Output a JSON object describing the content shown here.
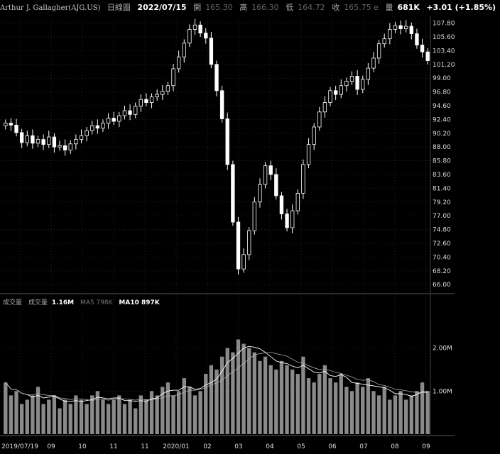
{
  "header": {
    "name": "Arthur J. Gallagher(AJG.US)",
    "period": "日線圖",
    "date": "2022/07/15",
    "open_label": "開",
    "open": "165.30",
    "high_label": "高",
    "high": "166.30",
    "low_label": "低",
    "low": "164.72",
    "close_label": "收",
    "close": "165.75 e",
    "vol_label": "量",
    "vol": "681K",
    "change": "+3.01 (+1.85%)"
  },
  "volume_legend": {
    "label": "成交量",
    "vol_label": "成交量",
    "vol_value": "1.16M",
    "ma5": "MA5 798K",
    "ma10": "MA10 897K"
  },
  "colors": {
    "background": "#000000",
    "grid": "#3a3a3a",
    "candle": "#ffffff",
    "volume_bar": "#8a8a8a",
    "ma_line": "#ffffff"
  },
  "chart_data": [
    {
      "type": "candlestick",
      "title": "",
      "y_ticks": [
        "107.80",
        "105.60",
        "103.40",
        "101.20",
        "99.00",
        "96.80",
        "94.60",
        "92.40",
        "90.20",
        "88.00",
        "85.80",
        "83.60",
        "81.40",
        "79.20",
        "77.00",
        "74.80",
        "72.60",
        "70.40",
        "68.20",
        "66.00"
      ],
      "ylim": [
        65,
        109
      ],
      "x_ticks": [
        "2019/07/19",
        "09",
        "10",
        "11",
        "11",
        "2020/01",
        "02",
        "03",
        "04",
        "05",
        "06",
        "07",
        "08",
        "09"
      ],
      "grid": true,
      "series": [
        {
          "values": [
            91.8,
            91.5,
            90.3,
            88.7,
            89.8,
            88.6,
            89.2,
            88.4,
            89.6,
            88.0,
            88.2,
            87.5,
            88.5,
            89.2,
            89.8,
            90.6,
            91.4,
            91.0,
            91.8,
            92.6,
            92.1,
            93.0,
            93.8,
            93.2,
            94.5,
            95.6,
            95.1,
            96.0,
            96.4,
            96.9,
            97.8,
            100.5,
            102.4,
            104.6,
            106.8,
            107.5,
            106.2,
            105.4,
            101.2,
            97.0,
            92.5,
            85.2,
            76.0,
            68.5,
            70.8,
            74.6,
            79.2,
            82.0,
            85.0,
            83.6,
            80.2,
            77.3,
            75.1,
            77.8,
            80.6,
            85.2,
            88.4,
            91.2,
            93.6,
            95.1,
            97.0,
            96.4,
            97.8,
            98.5,
            99.3,
            97.2,
            98.8,
            100.6,
            102.2,
            104.5,
            105.3,
            106.8,
            107.4,
            106.9,
            107.3,
            106.1,
            104.3,
            103.2,
            101.8
          ]
        }
      ]
    },
    {
      "type": "bar",
      "title": "",
      "y_ticks": [
        "2.00M",
        "1.00M"
      ],
      "ylim": [
        0,
        2.9
      ],
      "series": [
        {
          "values": [
            1.2,
            0.9,
            1.0,
            0.7,
            0.8,
            0.9,
            1.1,
            0.7,
            0.8,
            0.9,
            0.6,
            0.8,
            0.7,
            0.9,
            0.8,
            0.7,
            0.9,
            1.0,
            0.8,
            0.7,
            0.8,
            0.9,
            0.7,
            0.8,
            0.6,
            0.9,
            0.8,
            1.0,
            0.9,
            1.1,
            1.2,
            0.9,
            1.0,
            1.3,
            1.1,
            0.9,
            1.0,
            1.4,
            1.6,
            1.5,
            1.8,
            2.0,
            1.9,
            2.2,
            2.1,
            2.0,
            1.9,
            1.7,
            1.8,
            1.6,
            1.5,
            1.7,
            1.6,
            1.5,
            1.4,
            1.8,
            1.3,
            1.2,
            1.4,
            1.6,
            1.3,
            1.2,
            1.4,
            1.1,
            1.0,
            1.2,
            1.1,
            1.3,
            1.0,
            0.9,
            1.1,
            0.8,
            0.9,
            1.0,
            0.8,
            0.9,
            1.0,
            1.2,
            1.0
          ]
        }
      ]
    }
  ]
}
